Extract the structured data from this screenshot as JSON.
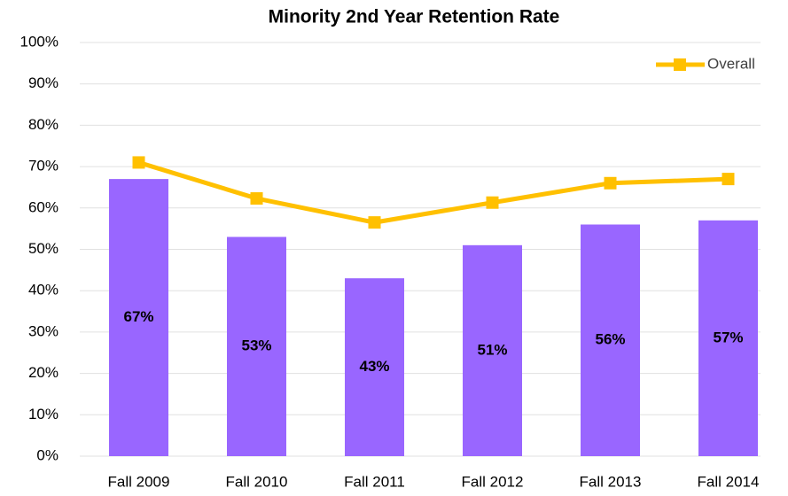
{
  "chart_data": {
    "type": "bar",
    "title": "Minority 2nd Year Retention Rate",
    "categories": [
      "Fall 2009",
      "Fall 2010",
      "Fall 2011",
      "Fall 2012",
      "Fall 2013",
      "Fall 2014"
    ],
    "values": [
      67,
      53,
      43,
      51,
      56,
      57
    ],
    "value_labels": [
      "67%",
      "53%",
      "43%",
      "51%",
      "56%",
      "57%"
    ],
    "color": "#9966ff",
    "series": [
      {
        "name": "Overall",
        "type": "line",
        "color": "#ffc000",
        "values": [
          71,
          62.3,
          56.5,
          61.3,
          66,
          67
        ]
      }
    ],
    "ylim": [
      0,
      100
    ],
    "yticks": [
      {
        "value": 0,
        "label": "0%"
      },
      {
        "value": 10,
        "label": "10%"
      },
      {
        "value": 20,
        "label": "20%"
      },
      {
        "value": 30,
        "label": "30%"
      },
      {
        "value": 40,
        "label": "40%"
      },
      {
        "value": 50,
        "label": "50%"
      },
      {
        "value": 60,
        "label": "60%"
      },
      {
        "value": 70,
        "label": "70%"
      },
      {
        "value": 80,
        "label": "80%"
      },
      {
        "value": 90,
        "label": "90%"
      },
      {
        "value": 100,
        "label": "100%"
      }
    ],
    "grid": true,
    "legend": "top-right"
  }
}
